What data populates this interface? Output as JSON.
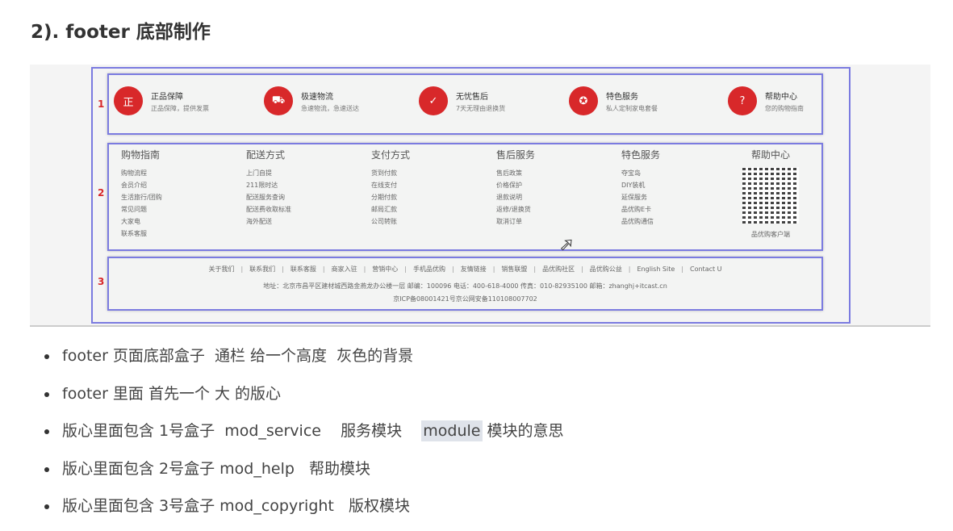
{
  "title": "2). footer 底部制作",
  "screenshot": {
    "box_numbers": [
      "1",
      "2",
      "3"
    ],
    "services": [
      {
        "icon": "正",
        "title": "正品保障",
        "sub": "正品保障，提供发票"
      },
      {
        "icon": "⛟",
        "title": "极速物流",
        "sub": "急速物流，急速送达"
      },
      {
        "icon": "✓",
        "title": "无忧售后",
        "sub": "7天无理由退换货"
      },
      {
        "icon": "✪",
        "title": "特色服务",
        "sub": "私人定制家电套餐"
      },
      {
        "icon": "?",
        "title": "帮助中心",
        "sub": "您的购物指南"
      }
    ],
    "help": [
      {
        "title": "购物指南",
        "links": [
          "购物流程",
          "会员介绍",
          "生活旅行/团购",
          "常见问题",
          "大家电",
          "联系客服"
        ]
      },
      {
        "title": "配送方式",
        "links": [
          "上门自提",
          "211限时达",
          "配送服务查询",
          "配送费收取标准",
          "海外配送"
        ]
      },
      {
        "title": "支付方式",
        "links": [
          "货到付款",
          "在线支付",
          "分期付款",
          "邮局汇款",
          "公司转账"
        ]
      },
      {
        "title": "售后服务",
        "links": [
          "售后政策",
          "价格保护",
          "退款说明",
          "返修/退换货",
          "取消订单"
        ]
      },
      {
        "title": "特色服务",
        "links": [
          "夺宝岛",
          "DIY装机",
          "延保服务",
          "品优购E卡",
          "品优购通信"
        ]
      },
      {
        "title": "帮助中心",
        "links": [
          "品优购客户端"
        ]
      }
    ],
    "links": [
      "关于我们",
      "联系我们",
      "联系客服",
      "商家入驻",
      "营销中心",
      "手机品优购",
      "友情链接",
      "销售联盟",
      "品优购社区",
      "品优购公益",
      "English Site",
      "Contact U"
    ],
    "address": "地址：北京市昌平区建材城西路金燕龙办公楼一层 邮编：100096 电话：400-618-4000 传真：010-82935100 邮箱：zhanghj+itcast.cn",
    "icp": "京ICP备08001421号京公网安备110108007702"
  },
  "bullets": [
    [
      "footer 页面底部盒子  通栏 给一个高度  灰色的背景"
    ],
    [
      "footer 里面 首先一个 大 的版心"
    ],
    [
      "版心里面包含 1号盒子  mod_service    服务模块    ",
      "module",
      " 模块的意思"
    ],
    [
      "版心里面包含 2号盒子 mod_help   帮助模块"
    ],
    [
      "版心里面包含 3号盒子 mod_copyright   版权模块"
    ]
  ],
  "colors": {
    "accent": "#d8282a",
    "box_outline": "#7b7be0"
  }
}
